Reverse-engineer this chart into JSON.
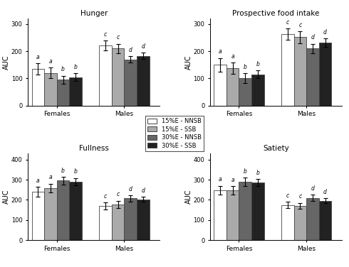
{
  "titles": [
    "Hunger",
    "Prospective food intake",
    "Fullness",
    "Satiety"
  ],
  "ylabel": "AUC",
  "bar_labels": [
    "15%E - NNSB",
    "15%E - SSB",
    "30%E - NNSB",
    "30%E - SSB"
  ],
  "bar_colors": [
    "#ffffff",
    "#aaaaaa",
    "#666666",
    "#222222"
  ],
  "bar_edgecolor": "#444444",
  "hunger": {
    "females": [
      135,
      120,
      95,
      105
    ],
    "females_err": [
      20,
      20,
      15,
      15
    ],
    "females_labels": [
      "a",
      "a",
      "b",
      "b"
    ],
    "males": [
      222,
      210,
      170,
      183
    ],
    "males_err": [
      18,
      18,
      12,
      12
    ],
    "males_labels": [
      "c",
      "c",
      "d",
      "d"
    ],
    "ylim": [
      0,
      320
    ],
    "yticks": [
      0,
      100,
      200,
      300
    ]
  },
  "prospective": {
    "females": [
      150,
      138,
      102,
      115
    ],
    "females_err": [
      25,
      20,
      18,
      15
    ],
    "females_labels": [
      "a",
      "a",
      "b",
      "b"
    ],
    "males": [
      263,
      252,
      210,
      232
    ],
    "males_err": [
      20,
      22,
      18,
      15
    ],
    "males_labels": [
      "c",
      "c",
      "d",
      "d"
    ],
    "ylim": [
      0,
      320
    ],
    "yticks": [
      0,
      100,
      200,
      300
    ]
  },
  "fullness": {
    "females": [
      240,
      258,
      295,
      290
    ],
    "females_err": [
      25,
      22,
      18,
      18
    ],
    "females_labels": [
      "a",
      "a",
      "b",
      "b"
    ],
    "males": [
      170,
      178,
      207,
      202
    ],
    "males_err": [
      18,
      18,
      15,
      12
    ],
    "males_labels": [
      "c",
      "c",
      "d",
      "d"
    ],
    "ylim": [
      0,
      430
    ],
    "yticks": [
      0,
      100,
      200,
      300,
      400
    ]
  },
  "satiety": {
    "females": [
      248,
      247,
      290,
      285
    ],
    "females_err": [
      22,
      20,
      20,
      18
    ],
    "females_labels": [
      "a",
      "a",
      "b",
      "b"
    ],
    "males": [
      175,
      170,
      210,
      195
    ],
    "males_err": [
      15,
      15,
      15,
      12
    ],
    "males_labels": [
      "c",
      "c",
      "d",
      "d"
    ],
    "ylim": [
      0,
      430
    ],
    "yticks": [
      0,
      100,
      200,
      300,
      400
    ]
  }
}
